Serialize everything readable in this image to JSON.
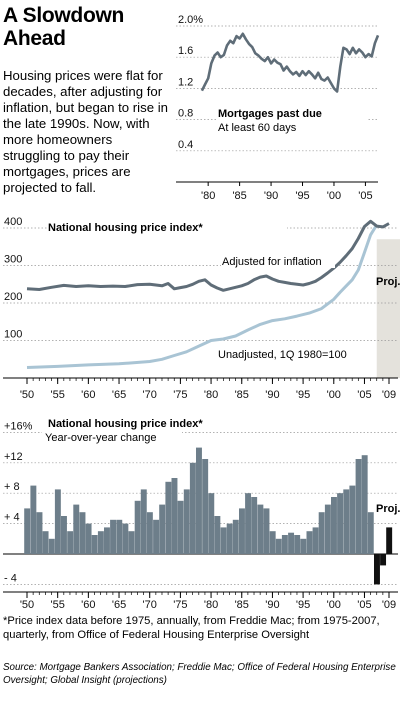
{
  "headline": "A Slowdown Ahead",
  "intro": "Housing prices were flat for decades, after adjusting for inflation, but began to rise in the late 1990s. Now, with more homeowners struggling to pay their mortgages, prices are projected to fall.",
  "footnote": "*Price index data before 1975, annually, from Freddie Mac; from 1975-2007, quarterly, from Office of Federal Housing Enterprise Oversight",
  "source": "Source: Mortgage Bankers Association; Freddie Mac; Office of Federal Housing Enterprise Oversight; Global Insight (projections)",
  "colors": {
    "line_dark": "#5f6d78",
    "line_light": "#a9c4d4",
    "bars": "#6d7e8a",
    "proj_shade": "#e4e2dc",
    "grid": "#999999"
  },
  "chart_data": [
    {
      "type": "line",
      "title": "Mortgages past due",
      "subtitle": "At least 60 days",
      "xlim": [
        1976,
        2007
      ],
      "ylim": [
        0,
        2.1
      ],
      "yticks": [
        0.4,
        0.8,
        1.2,
        1.6,
        2.0
      ],
      "yticklabels": [
        "0.4",
        "0.8",
        "1.2",
        "1.6",
        "2.0%"
      ],
      "xticks": [
        1980,
        1985,
        1990,
        1995,
        2000,
        2005
      ],
      "xticklabels": [
        "'80",
        "'85",
        "'90",
        "'95",
        "'00",
        "'05"
      ],
      "series": [
        {
          "x": [
            1979.0,
            1979.5,
            1980.0,
            1980.5,
            1981.0,
            1981.5,
            1982.0,
            1982.5,
            1983.0,
            1983.5,
            1984.0,
            1984.5,
            1985.0,
            1985.5,
            1986.0,
            1986.5,
            1987.0,
            1987.5,
            1988.0,
            1988.5,
            1989.0,
            1989.5,
            1990.0,
            1990.5,
            1991.0,
            1991.5,
            1992.0,
            1992.5,
            1993.0,
            1993.5,
            1994.0,
            1994.5,
            1995.0,
            1995.5,
            1996.0,
            1996.5,
            1997.0,
            1997.5,
            1998.0,
            1998.5,
            1999.0,
            1999.5,
            2000.0,
            2000.5,
            2001.0,
            2001.5,
            2002.0,
            2002.5,
            2003.0,
            2003.5,
            2004.0,
            2004.5,
            2005.0,
            2005.5,
            2006.0,
            2006.5,
            2007.0
          ],
          "y": [
            1.17,
            1.25,
            1.33,
            1.52,
            1.62,
            1.66,
            1.6,
            1.63,
            1.75,
            1.81,
            1.78,
            1.87,
            1.84,
            1.9,
            1.83,
            1.77,
            1.73,
            1.65,
            1.62,
            1.58,
            1.55,
            1.6,
            1.52,
            1.57,
            1.53,
            1.51,
            1.43,
            1.48,
            1.42,
            1.38,
            1.41,
            1.36,
            1.42,
            1.37,
            1.42,
            1.38,
            1.33,
            1.4,
            1.32,
            1.3,
            1.34,
            1.27,
            1.2,
            1.16,
            1.48,
            1.72,
            1.7,
            1.64,
            1.72,
            1.65,
            1.7,
            1.66,
            1.6,
            1.64,
            1.61,
            1.78,
            1.88
          ]
        }
      ]
    },
    {
      "type": "line",
      "title": "National housing price index*",
      "xlim": [
        1950,
        2009.5
      ],
      "ylim": [
        0,
        430
      ],
      "yticks": [
        100,
        200,
        300,
        400
      ],
      "yticklabels": [
        "100",
        "200",
        "300",
        "400"
      ],
      "xticks": [
        1950,
        1955,
        1960,
        1965,
        1970,
        1975,
        1980,
        1985,
        1990,
        1995,
        2000,
        2005,
        2009
      ],
      "xticklabels": [
        "'50",
        "'55",
        "'60",
        "'65",
        "'70",
        "'75",
        "'80",
        "'85",
        "'90",
        "'95",
        "'00",
        "'05",
        "'09"
      ],
      "projection": {
        "label": "Proj.",
        "start": 2007,
        "end": 2009.5
      },
      "series": [
        {
          "name": "Adjusted for inflation",
          "x": [
            1950,
            1952,
            1954,
            1956,
            1958,
            1960,
            1962,
            1964,
            1966,
            1968,
            1970,
            1972,
            1973,
            1974,
            1975,
            1976,
            1977,
            1978,
            1979,
            1980,
            1981,
            1982,
            1983,
            1984,
            1985,
            1986,
            1987,
            1988,
            1989,
            1990,
            1991,
            1992,
            1993,
            1994,
            1995,
            1996,
            1997,
            1998,
            1999,
            2000,
            2001,
            2002,
            2003,
            2004,
            2005,
            2006,
            2007,
            2008,
            2009
          ],
          "y": [
            238,
            236,
            242,
            247,
            244,
            246,
            244,
            245,
            244,
            249,
            250,
            246,
            252,
            238,
            241,
            244,
            250,
            258,
            262,
            248,
            240,
            234,
            238,
            242,
            246,
            252,
            262,
            269,
            272,
            264,
            258,
            255,
            252,
            250,
            248,
            252,
            258,
            268,
            280,
            293,
            308,
            326,
            345,
            372,
            404,
            418,
            405,
            403,
            412
          ]
        },
        {
          "name": "Unadjusted, 1Q 1980=100",
          "x": [
            1950,
            1955,
            1960,
            1965,
            1970,
            1972,
            1974,
            1976,
            1978,
            1980,
            1982,
            1984,
            1986,
            1988,
            1990,
            1992,
            1994,
            1996,
            1998,
            2000,
            2001,
            2002,
            2003,
            2004,
            2005,
            2006,
            2007
          ],
          "y": [
            28,
            31,
            35,
            38,
            44,
            50,
            60,
            70,
            85,
            100,
            104,
            112,
            128,
            143,
            153,
            158,
            165,
            173,
            185,
            210,
            228,
            245,
            262,
            288,
            335,
            382,
            408
          ]
        }
      ]
    },
    {
      "type": "bar",
      "title": "National housing price index*",
      "subtitle": "Year-over-year change",
      "xlim": [
        1950,
        2009.5
      ],
      "ylim": [
        -6.5,
        17
      ],
      "yticks": [
        -4,
        4,
        8,
        12,
        16
      ],
      "yticklabels": [
        "- 4",
        "+ 4",
        "+ 8",
        "+12",
        "+16%"
      ],
      "xticks": [
        1950,
        1955,
        1960,
        1965,
        1970,
        1975,
        1980,
        1985,
        1990,
        1995,
        2000,
        2005,
        2009
      ],
      "xticklabels": [
        "'50",
        "'55",
        "'60",
        "'65",
        "'70",
        "'75",
        "'80",
        "'85",
        "'90",
        "'95",
        "'00",
        "'05",
        "'09"
      ],
      "projection": {
        "label": "Proj.",
        "start": 2007
      },
      "x": [
        1950,
        1951,
        1952,
        1953,
        1954,
        1955,
        1956,
        1957,
        1958,
        1959,
        1960,
        1961,
        1962,
        1963,
        1964,
        1965,
        1966,
        1967,
        1968,
        1969,
        1970,
        1971,
        1972,
        1973,
        1974,
        1975,
        1976,
        1977,
        1978,
        1979,
        1980,
        1981,
        1982,
        1983,
        1984,
        1985,
        1986,
        1987,
        1988,
        1989,
        1990,
        1991,
        1992,
        1993,
        1994,
        1995,
        1996,
        1997,
        1998,
        1999,
        2000,
        2001,
        2002,
        2003,
        2004,
        2005,
        2006,
        2007,
        2008,
        2009
      ],
      "values": [
        6.0,
        9.0,
        5.5,
        3.0,
        2.0,
        8.5,
        5.0,
        3.0,
        6.5,
        5.5,
        4.0,
        2.5,
        3.0,
        3.5,
        4.5,
        4.5,
        4.0,
        3.0,
        7.0,
        8.5,
        5.5,
        4.5,
        6.5,
        9.5,
        10.0,
        7.0,
        8.5,
        12.0,
        14.0,
        12.5,
        8.0,
        5.0,
        3.5,
        4.0,
        4.5,
        6.0,
        8.0,
        7.5,
        6.5,
        6.0,
        3.0,
        2.0,
        2.5,
        2.8,
        2.5,
        2.0,
        3.0,
        3.5,
        5.5,
        6.5,
        7.5,
        8.0,
        8.5,
        9.0,
        12.5,
        13.0,
        5.5,
        -4.0,
        -1.5,
        3.5
      ]
    }
  ]
}
